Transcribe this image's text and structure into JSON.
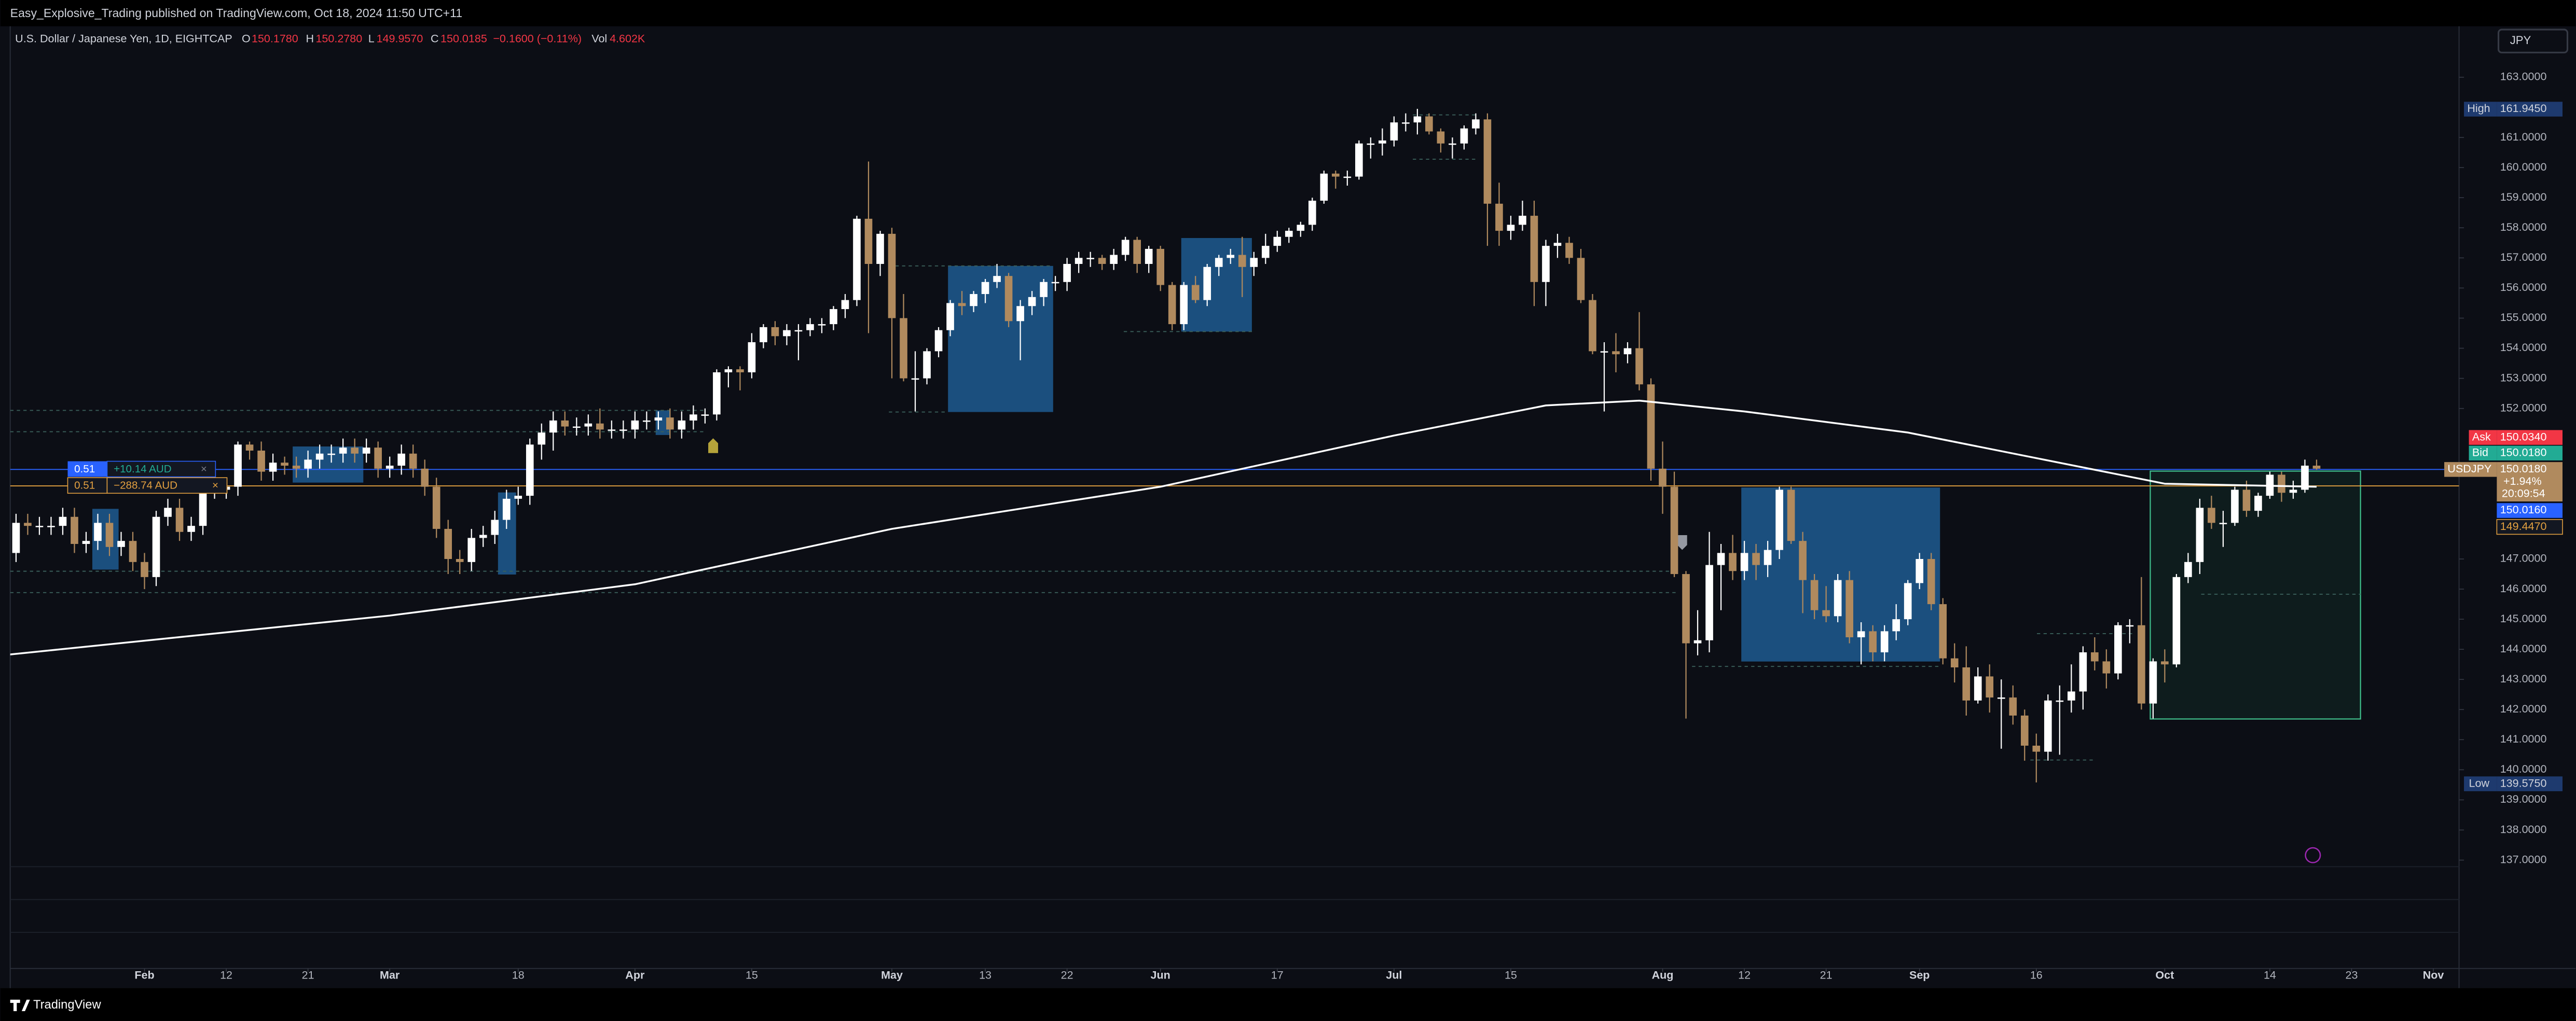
{
  "header": {
    "publisher": "Easy_Explosive_Trading published on TradingView.com, Oct 18, 2024 11:50 UTC+11"
  },
  "legend": {
    "symbol": "U.S. Dollar / Japanese Yen, 1D, EIGHTCAP",
    "o_key": "O",
    "o": "150.1780",
    "h_key": "H",
    "h": "150.2780",
    "l_key": "L",
    "l": "149.9570",
    "c_key": "C",
    "c": "150.0185",
    "change": "−0.1600 (−0.11%)",
    "vol_key": "Vol",
    "vol": "4.602K"
  },
  "currency_button": "JPY",
  "positions": [
    {
      "qty": "0.51",
      "pnl": "+10.14 AUD",
      "close": "×"
    },
    {
      "qty": "0.51",
      "pnl": "−288.74 AUD",
      "close": "×"
    }
  ],
  "price_scale": {
    "high_key": "High",
    "high": "161.9450",
    "low_key": "Low",
    "low": "139.5750",
    "ask_key": "Ask",
    "ask": "150.0340",
    "bid_key": "Bid",
    "bid": "150.0180",
    "symbol": "USDJPY",
    "last": "150.0180",
    "change": "+1.94%",
    "countdown": "20:09:54",
    "position_price": "150.0160",
    "avg_price": "149.4470"
  },
  "footer": {
    "brand": "TradingView"
  },
  "chart_data": {
    "type": "candlestick",
    "up_color": "#ffffff",
    "down_color": "#b08a5e",
    "xlim": [
      0.5,
      210.2
    ],
    "ylim": [
      133.4,
      163.93
    ],
    "xticks": [
      {
        "value": 12,
        "label": "Feb"
      },
      {
        "value": 19,
        "label": "12"
      },
      {
        "value": 26,
        "label": "21"
      },
      {
        "value": 33,
        "label": "Mar"
      },
      {
        "value": 44,
        "label": "18"
      },
      {
        "value": 54,
        "label": "Apr"
      },
      {
        "value": 64,
        "label": "15"
      },
      {
        "value": 76,
        "label": "May"
      },
      {
        "value": 84,
        "label": "13"
      },
      {
        "value": 91,
        "label": "22"
      },
      {
        "value": 99,
        "label": "Jun"
      },
      {
        "value": 109,
        "label": "17"
      },
      {
        "value": 119,
        "label": "Jul"
      },
      {
        "value": 129,
        "label": "15"
      },
      {
        "value": 142,
        "label": "Aug"
      },
      {
        "value": 149,
        "label": "12"
      },
      {
        "value": 156,
        "label": "21"
      },
      {
        "value": 164,
        "label": "Sep"
      },
      {
        "value": 174,
        "label": "16"
      },
      {
        "value": 185,
        "label": "Oct"
      },
      {
        "value": 194,
        "label": "14"
      },
      {
        "value": 201,
        "label": "23"
      },
      {
        "value": 208,
        "label": "Nov"
      }
    ],
    "yticks": [
      {
        "value": 137,
        "label": "137.0000"
      },
      {
        "value": 138,
        "label": "138.0000"
      },
      {
        "value": 139,
        "label": "139.0000"
      },
      {
        "value": 140,
        "label": "140.0000"
      },
      {
        "value": 141,
        "label": "141.0000"
      },
      {
        "value": 142,
        "label": "142.0000"
      },
      {
        "value": 143,
        "label": "143.0000"
      },
      {
        "value": 144,
        "label": "144.0000"
      },
      {
        "value": 145,
        "label": "145.0000"
      },
      {
        "value": 146,
        "label": "146.0000"
      },
      {
        "value": 147,
        "label": "147.0000"
      },
      {
        "value": 152,
        "label": "152.0000"
      },
      {
        "value": 153,
        "label": "153.0000"
      },
      {
        "value": 154,
        "label": "154.0000"
      },
      {
        "value": 155,
        "label": "155.0000"
      },
      {
        "value": 156,
        "label": "156.0000"
      },
      {
        "value": 157,
        "label": "157.0000"
      },
      {
        "value": 158,
        "label": "158.0000"
      },
      {
        "value": 159,
        "label": "159.0000"
      },
      {
        "value": 160,
        "label": "160.0000"
      },
      {
        "value": 161,
        "label": "161.0000"
      },
      {
        "value": 163,
        "label": "163.0000"
      }
    ],
    "ma": {
      "color": "#ffffff",
      "x": [
        0,
        33,
        54,
        76,
        99,
        119,
        132,
        140,
        149,
        163,
        185,
        198
      ],
      "values": [
        143.81,
        145.12,
        146.16,
        148.0,
        149.4,
        151.1,
        152.1,
        152.26,
        151.9,
        151.2,
        149.5,
        149.4
      ]
    },
    "ohlc": [
      [
        147.0,
        147.5,
        146.7,
        147.2
      ],
      [
        147.2,
        148.5,
        146.9,
        148.2
      ],
      [
        148.2,
        148.5,
        147.8,
        148.1
      ],
      [
        148.1,
        148.4,
        147.8,
        148.1
      ],
      [
        148.1,
        148.4,
        147.8,
        148.1
      ],
      [
        148.1,
        148.7,
        147.8,
        148.4
      ],
      [
        148.4,
        148.7,
        147.2,
        147.5
      ],
      [
        147.5,
        147.9,
        147.2,
        147.6
      ],
      [
        147.6,
        148.5,
        147.3,
        148.2
      ],
      [
        148.2,
        148.5,
        147.1,
        147.4
      ],
      [
        147.4,
        147.9,
        147.1,
        147.6
      ],
      [
        147.6,
        147.9,
        146.6,
        146.9
      ],
      [
        146.9,
        147.2,
        146.0,
        146.4
      ],
      [
        146.4,
        148.6,
        146.1,
        148.4
      ],
      [
        148.4,
        149.0,
        148.1,
        148.7
      ],
      [
        148.7,
        149.0,
        147.6,
        147.9
      ],
      [
        147.9,
        148.4,
        147.6,
        148.1
      ],
      [
        148.1,
        149.6,
        147.8,
        149.3
      ],
      [
        149.3,
        149.6,
        149.0,
        149.3
      ],
      [
        149.3,
        149.7,
        149.0,
        149.4
      ],
      [
        149.4,
        150.9,
        149.1,
        150.8
      ],
      [
        150.8,
        150.9,
        150.3,
        150.6
      ],
      [
        150.6,
        150.9,
        149.6,
        149.9
      ],
      [
        149.9,
        150.5,
        149.6,
        150.2
      ],
      [
        150.2,
        150.4,
        149.8,
        150.1
      ],
      [
        150.1,
        150.4,
        149.7,
        150.0
      ],
      [
        150.0,
        150.6,
        149.7,
        150.3
      ],
      [
        150.3,
        150.8,
        150.0,
        150.5
      ],
      [
        150.5,
        150.8,
        150.2,
        150.5
      ],
      [
        150.5,
        151.0,
        150.2,
        150.7
      ],
      [
        150.7,
        151.0,
        150.2,
        150.5
      ],
      [
        150.5,
        151.0,
        150.2,
        150.7
      ],
      [
        150.7,
        150.9,
        149.7,
        150.0
      ],
      [
        150.0,
        150.4,
        149.7,
        150.1
      ],
      [
        150.1,
        150.8,
        149.8,
        150.5
      ],
      [
        150.5,
        150.8,
        149.7,
        150.0
      ],
      [
        150.0,
        150.3,
        149.1,
        149.4
      ],
      [
        149.4,
        149.7,
        147.7,
        148.0
      ],
      [
        148.0,
        148.3,
        146.5,
        147.0
      ],
      [
        147.0,
        147.3,
        146.5,
        146.9
      ],
      [
        146.9,
        148.0,
        146.6,
        147.7
      ],
      [
        147.7,
        148.1,
        147.4,
        147.8
      ],
      [
        147.8,
        148.6,
        147.5,
        148.3
      ],
      [
        148.3,
        149.3,
        148.0,
        149.0
      ],
      [
        149.0,
        149.4,
        148.8,
        149.1
      ],
      [
        149.1,
        151.0,
        148.8,
        150.8
      ],
      [
        150.8,
        151.5,
        150.3,
        151.2
      ],
      [
        151.2,
        151.9,
        150.6,
        151.6
      ],
      [
        151.6,
        151.9,
        151.1,
        151.4
      ],
      [
        151.4,
        151.7,
        151.1,
        151.4
      ],
      [
        151.4,
        151.8,
        151.1,
        151.5
      ],
      [
        151.5,
        152.0,
        151.0,
        151.3
      ],
      [
        151.3,
        151.6,
        151.0,
        151.3
      ],
      [
        151.3,
        151.6,
        151.0,
        151.3
      ],
      [
        151.3,
        151.9,
        151.0,
        151.6
      ],
      [
        151.6,
        151.9,
        151.3,
        151.6
      ],
      [
        151.6,
        151.9,
        151.3,
        151.7
      ],
      [
        151.7,
        152.0,
        151.0,
        151.3
      ],
      [
        151.3,
        151.9,
        151.0,
        151.6
      ],
      [
        151.6,
        152.1,
        151.3,
        151.8
      ],
      [
        151.8,
        152.0,
        151.5,
        151.8
      ],
      [
        151.8,
        153.3,
        151.6,
        153.2
      ],
      [
        153.2,
        153.4,
        152.7,
        153.3
      ],
      [
        153.3,
        153.4,
        152.6,
        153.2
      ],
      [
        153.2,
        154.5,
        153.0,
        154.2
      ],
      [
        154.2,
        154.8,
        154.0,
        154.7
      ],
      [
        154.7,
        154.9,
        154.1,
        154.4
      ],
      [
        154.4,
        154.8,
        154.1,
        154.6
      ],
      [
        154.6,
        154.8,
        153.6,
        154.6
      ],
      [
        154.6,
        155.0,
        154.4,
        154.8
      ],
      [
        154.8,
        155.0,
        154.5,
        154.8
      ],
      [
        154.8,
        155.4,
        154.6,
        155.3
      ],
      [
        155.3,
        155.8,
        155.0,
        155.6
      ],
      [
        155.6,
        158.4,
        155.4,
        158.3
      ],
      [
        158.3,
        160.2,
        154.5,
        156.8
      ],
      [
        156.8,
        157.9,
        156.4,
        157.8
      ],
      [
        157.8,
        158.0,
        153.0,
        155.0
      ],
      [
        155.0,
        155.8,
        152.9,
        153.0
      ],
      [
        153.0,
        153.9,
        151.9,
        153.0
      ],
      [
        153.0,
        154.0,
        152.8,
        153.9
      ],
      [
        153.9,
        154.7,
        153.7,
        154.6
      ],
      [
        154.6,
        155.6,
        154.4,
        155.5
      ],
      [
        155.5,
        155.9,
        155.1,
        155.4
      ],
      [
        155.4,
        155.9,
        155.2,
        155.8
      ],
      [
        155.8,
        156.3,
        155.5,
        156.2
      ],
      [
        156.2,
        156.8,
        156.0,
        156.4
      ],
      [
        156.4,
        156.5,
        154.7,
        154.9
      ],
      [
        154.9,
        155.6,
        153.6,
        155.4
      ],
      [
        155.4,
        155.9,
        155.1,
        155.7
      ],
      [
        155.7,
        156.3,
        155.4,
        156.2
      ],
      [
        156.2,
        156.4,
        155.9,
        156.2
      ],
      [
        156.2,
        157.0,
        155.9,
        156.8
      ],
      [
        156.8,
        157.2,
        156.5,
        157.0
      ],
      [
        157.0,
        157.2,
        156.7,
        157.0
      ],
      [
        157.0,
        157.1,
        156.6,
        156.8
      ],
      [
        156.8,
        157.3,
        156.6,
        157.1
      ],
      [
        157.1,
        157.7,
        156.9,
        157.6
      ],
      [
        157.6,
        157.7,
        156.5,
        156.8
      ],
      [
        156.8,
        157.4,
        156.5,
        157.3
      ],
      [
        157.3,
        157.4,
        155.9,
        156.1
      ],
      [
        156.1,
        156.2,
        154.6,
        154.8
      ],
      [
        154.8,
        156.2,
        154.6,
        156.1
      ],
      [
        156.1,
        156.4,
        155.5,
        155.6
      ],
      [
        155.6,
        156.8,
        155.4,
        156.7
      ],
      [
        156.7,
        157.1,
        156.4,
        157.0
      ],
      [
        157.0,
        157.3,
        156.8,
        157.1
      ],
      [
        157.1,
        157.7,
        155.7,
        156.7
      ],
      [
        156.7,
        157.2,
        156.4,
        157.0
      ],
      [
        157.0,
        157.8,
        156.8,
        157.4
      ],
      [
        157.4,
        157.9,
        157.2,
        157.7
      ],
      [
        157.7,
        158.0,
        157.5,
        157.9
      ],
      [
        157.9,
        158.2,
        157.7,
        158.1
      ],
      [
        158.1,
        159.0,
        157.9,
        158.9
      ],
      [
        158.9,
        159.9,
        158.8,
        159.8
      ],
      [
        159.8,
        159.9,
        159.3,
        159.7
      ],
      [
        159.7,
        159.9,
        159.4,
        159.7
      ],
      [
        159.7,
        160.9,
        159.6,
        160.8
      ],
      [
        160.8,
        161.0,
        160.3,
        160.8
      ],
      [
        160.8,
        161.3,
        160.4,
        160.9
      ],
      [
        160.9,
        161.7,
        160.7,
        161.5
      ],
      [
        161.5,
        161.8,
        161.2,
        161.5
      ],
      [
        161.5,
        161.95,
        161.1,
        161.7
      ],
      [
        161.7,
        161.8,
        161.1,
        161.2
      ],
      [
        161.2,
        161.3,
        160.5,
        160.8
      ],
      [
        160.8,
        161.0,
        160.3,
        160.8
      ],
      [
        160.8,
        161.4,
        160.6,
        161.3
      ],
      [
        161.3,
        161.8,
        161.1,
        161.6
      ],
      [
        161.6,
        161.8,
        157.4,
        158.8
      ],
      [
        158.8,
        159.5,
        157.4,
        157.9
      ],
      [
        157.9,
        158.4,
        157.6,
        158.1
      ],
      [
        158.1,
        158.9,
        157.9,
        158.4
      ],
      [
        158.4,
        158.9,
        155.4,
        156.2
      ],
      [
        156.2,
        157.6,
        155.4,
        157.4
      ],
      [
        157.4,
        157.8,
        157.0,
        157.5
      ],
      [
        157.5,
        157.7,
        156.8,
        157.0
      ],
      [
        157.0,
        157.3,
        155.5,
        155.6
      ],
      [
        155.6,
        155.8,
        153.8,
        153.9
      ],
      [
        153.9,
        154.2,
        151.9,
        153.9
      ],
      [
        153.9,
        154.5,
        153.2,
        153.8
      ],
      [
        153.8,
        154.2,
        153.5,
        154.0
      ],
      [
        154.0,
        155.2,
        152.6,
        152.8
      ],
      [
        152.8,
        153.0,
        149.6,
        150.0
      ],
      [
        150.0,
        150.9,
        148.5,
        149.4
      ],
      [
        149.4,
        149.9,
        146.4,
        146.5
      ],
      [
        146.5,
        146.6,
        141.7,
        144.2
      ],
      [
        144.2,
        145.3,
        143.8,
        144.3
      ],
      [
        144.3,
        147.9,
        143.9,
        146.8
      ],
      [
        146.8,
        147.5,
        145.3,
        147.2
      ],
      [
        147.2,
        147.8,
        146.3,
        146.6
      ],
      [
        146.6,
        147.6,
        146.3,
        147.2
      ],
      [
        147.2,
        147.5,
        146.3,
        146.8
      ],
      [
        146.8,
        147.6,
        146.4,
        147.3
      ],
      [
        147.3,
        149.4,
        147.0,
        149.3
      ],
      [
        149.3,
        149.4,
        147.5,
        147.6
      ],
      [
        147.6,
        147.9,
        145.2,
        146.3
      ],
      [
        146.3,
        146.5,
        145.0,
        145.3
      ],
      [
        145.3,
        146.1,
        144.9,
        145.1
      ],
      [
        145.1,
        146.5,
        144.9,
        146.3
      ],
      [
        146.3,
        146.6,
        144.2,
        144.4
      ],
      [
        144.4,
        144.9,
        143.5,
        144.6
      ],
      [
        144.6,
        144.8,
        143.6,
        143.9
      ],
      [
        143.9,
        144.8,
        143.6,
        144.6
      ],
      [
        144.6,
        145.5,
        144.3,
        145.0
      ],
      [
        145.0,
        146.3,
        144.8,
        146.2
      ],
      [
        146.2,
        147.2,
        146.0,
        147.0
      ],
      [
        147.0,
        147.2,
        145.3,
        145.5
      ],
      [
        145.5,
        145.7,
        143.5,
        143.7
      ],
      [
        143.7,
        144.2,
        142.9,
        143.4
      ],
      [
        143.4,
        144.1,
        141.8,
        142.3
      ],
      [
        142.3,
        143.4,
        142.2,
        143.1
      ],
      [
        143.1,
        143.5,
        141.9,
        142.4
      ],
      [
        142.4,
        143.0,
        140.7,
        142.4
      ],
      [
        142.4,
        142.8,
        141.5,
        141.8
      ],
      [
        141.8,
        142.0,
        140.3,
        140.8
      ],
      [
        140.8,
        141.2,
        139.58,
        140.6
      ],
      [
        140.6,
        142.5,
        140.3,
        142.3
      ],
      [
        142.3,
        142.8,
        140.5,
        142.3
      ],
      [
        142.3,
        143.5,
        141.9,
        142.6
      ],
      [
        142.6,
        144.1,
        142.0,
        143.9
      ],
      [
        143.9,
        144.4,
        143.3,
        143.6
      ],
      [
        143.6,
        144.0,
        142.7,
        143.2
      ],
      [
        143.2,
        144.9,
        143.0,
        144.8
      ],
      [
        144.8,
        145.0,
        144.2,
        144.8
      ],
      [
        144.8,
        146.4,
        142.0,
        142.2
      ],
      [
        142.2,
        143.7,
        141.7,
        143.6
      ],
      [
        143.6,
        144.0,
        142.9,
        143.5
      ],
      [
        143.5,
        146.5,
        143.4,
        146.4
      ],
      [
        146.4,
        147.2,
        146.2,
        146.9
      ],
      [
        146.9,
        149.0,
        146.5,
        148.7
      ],
      [
        148.7,
        149.1,
        148.0,
        148.2
      ],
      [
        148.2,
        148.6,
        147.4,
        148.2
      ],
      [
        148.2,
        149.4,
        148.1,
        149.3
      ],
      [
        149.3,
        149.6,
        148.4,
        148.6
      ],
      [
        148.6,
        149.2,
        148.4,
        149.1
      ],
      [
        149.1,
        149.9,
        149.0,
        149.8
      ],
      [
        149.8,
        149.9,
        148.9,
        149.2
      ],
      [
        149.2,
        149.6,
        149.0,
        149.3
      ],
      [
        149.3,
        150.3,
        149.2,
        150.1
      ],
      [
        150.1,
        150.3,
        149.96,
        150.0
      ]
    ]
  }
}
